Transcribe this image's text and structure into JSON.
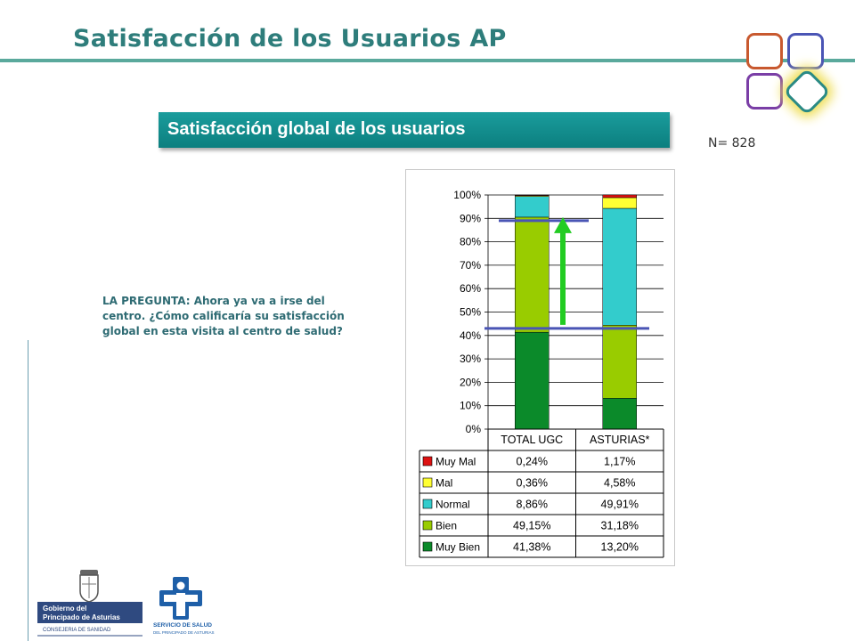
{
  "slide": {
    "title": "Satisfacción de los Usuarios AP",
    "banner": "Satisfacción global de los usuarios",
    "n_label": "N= 828",
    "question": "LA PREGUNTA: Ahora ya va a irse del centro. ¿Cómo calificaría su satisfacción global en esta visita al centro de salud?"
  },
  "logos": {
    "gobierno": [
      "Gobierno del",
      "Principado de Asturias",
      "CONSEJERIA DE SANIDAD"
    ],
    "servicio": [
      "SERVICIO DE SALUD",
      "DEL PRINCIPADO DE ASTURIAS"
    ]
  },
  "colors": {
    "accent": "#2e7d7b",
    "banner": "#138c8c",
    "arrow": "#22cc22",
    "refline": "#4a55b5"
  },
  "chart_data": {
    "type": "bar",
    "stacked": true,
    "categories": [
      "TOTAL UGC",
      "ASTURIAS*"
    ],
    "series": [
      {
        "name": "Muy Bien",
        "color": "#0b8a2a",
        "values": [
          41.38,
          13.2
        ],
        "labels": [
          "41,38%",
          "13,20%"
        ]
      },
      {
        "name": "Bien",
        "color": "#99cc00",
        "values": [
          49.15,
          31.18
        ],
        "labels": [
          "49,15%",
          "31,18%"
        ]
      },
      {
        "name": "Normal",
        "color": "#33cccc",
        "values": [
          8.86,
          49.91
        ],
        "labels": [
          "8,86%",
          "49,91%"
        ]
      },
      {
        "name": "Mal",
        "color": "#ffff33",
        "values": [
          0.36,
          4.58
        ],
        "labels": [
          "0,36%",
          "4,58%"
        ]
      },
      {
        "name": "Muy Mal",
        "color": "#dd1111",
        "values": [
          0.24,
          1.17
        ],
        "labels": [
          "0,24%",
          "1,17%"
        ]
      }
    ],
    "ylim": [
      0,
      100
    ],
    "yticks": [
      "0%",
      "10%",
      "20%",
      "30%",
      "40%",
      "50%",
      "60%",
      "70%",
      "80%",
      "90%",
      "100%"
    ],
    "grid": true,
    "data_table": true,
    "reference_lines": [
      89,
      43
    ]
  }
}
